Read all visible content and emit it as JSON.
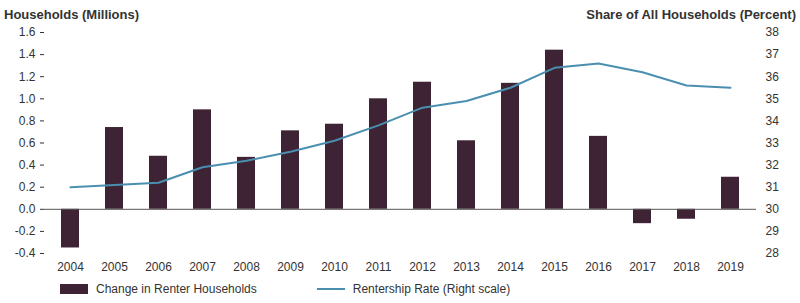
{
  "chart_data": {
    "type": "bar",
    "ylabel": "Households (Millions)",
    "y2label": "Share of All Households (Percent)",
    "x": [
      "2004",
      "2005",
      "2006",
      "2007",
      "2008",
      "2009",
      "2010",
      "2011",
      "2012",
      "2013",
      "2014",
      "2015",
      "2016",
      "2017",
      "2018",
      "2019"
    ],
    "series": [
      {
        "name": "Change in Renter Households",
        "type": "bar",
        "color": "#3d2333",
        "values": [
          -0.35,
          0.74,
          0.48,
          0.9,
          0.47,
          0.71,
          0.77,
          1.0,
          1.15,
          0.62,
          1.14,
          1.44,
          0.66,
          -0.13,
          -0.09,
          0.29
        ]
      },
      {
        "name": "Rentership Rate (Right scale)",
        "type": "line",
        "axis": "y2",
        "color": "#4a8fb0",
        "values": [
          31.0,
          31.1,
          31.2,
          31.9,
          32.2,
          32.6,
          33.1,
          33.8,
          34.6,
          34.9,
          35.5,
          36.4,
          36.6,
          36.2,
          35.6,
          35.5
        ]
      }
    ],
    "ylim": [
      -0.4,
      1.6
    ],
    "yticks": [
      -0.4,
      -0.2,
      {
        "value": 0,
        "label": "0.0"
      },
      0.2,
      0.4,
      0.6,
      0.8,
      {
        "value": 1,
        "label": "1.0"
      },
      1.2,
      1.4,
      1.6
    ],
    "y2lim": [
      28,
      38
    ],
    "y2ticks": [
      28,
      29,
      30,
      31,
      32,
      33,
      34,
      35,
      36,
      37,
      38
    ],
    "grid": false,
    "legend": "bottom"
  }
}
